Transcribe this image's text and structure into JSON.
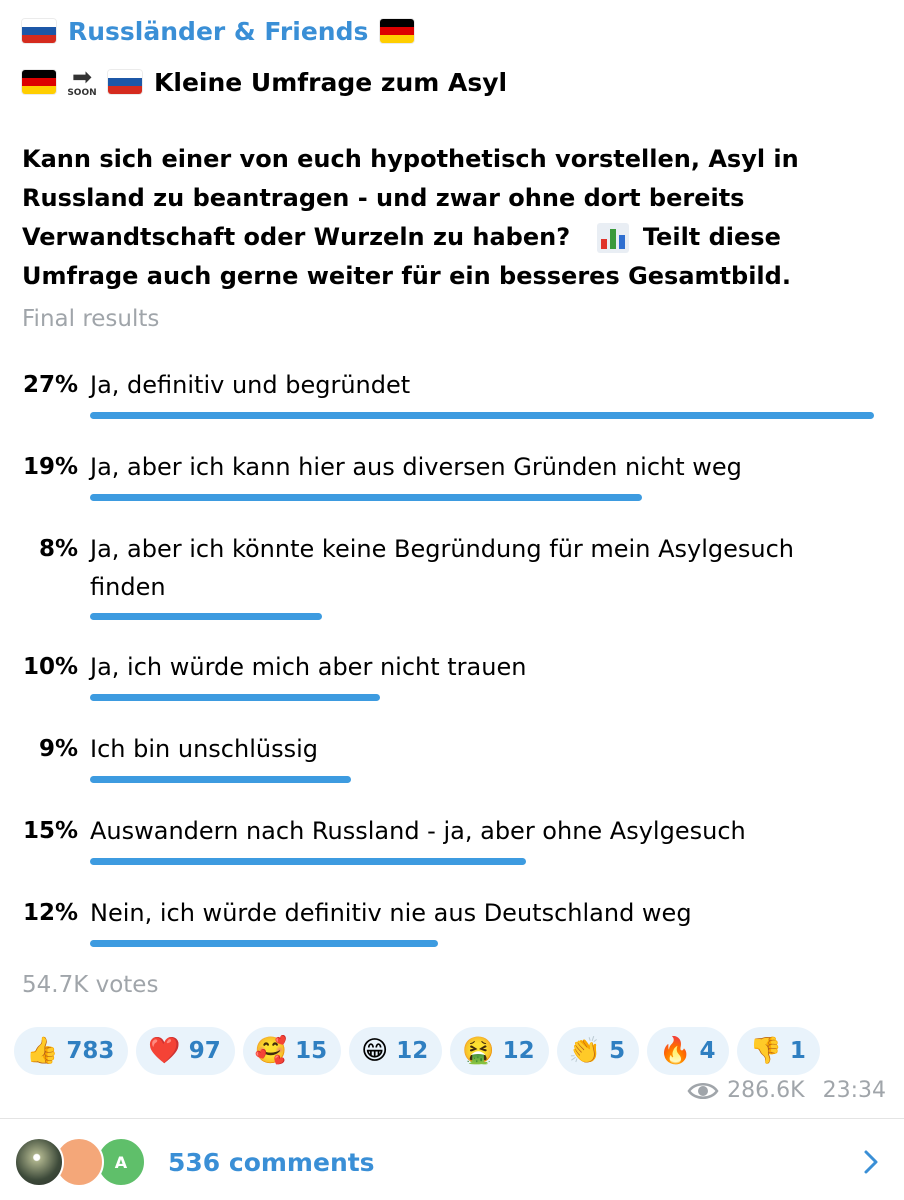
{
  "channel": {
    "name": "Russländer & Friends"
  },
  "post": {
    "headline": "Kleine Umfrage zum Asyl",
    "soon_label": "SOON",
    "question_part1": "Kann sich einer von euch hypothetisch vorstellen, Asyl in Russland zu beantragen - und zwar ohne dort bereits Verwandtschaft oder Wurzeln zu haben?",
    "question_part2": "Teilt diese Umfrage auch gerne weiter für ein besseres Gesamtbild."
  },
  "poll": {
    "status": "Final results",
    "options": [
      {
        "percent": "27%",
        "text": "Ja, definitiv und begründet",
        "value": 27
      },
      {
        "percent": "19%",
        "text": "Ja, aber ich kann hier aus diversen Gründen nicht weg",
        "value": 19
      },
      {
        "percent": "8%",
        "text": "Ja, aber ich könnte keine Begründung für mein Asylgesuch finden",
        "value": 8
      },
      {
        "percent": "10%",
        "text": "Ja, ich würde mich aber nicht trauen",
        "value": 10
      },
      {
        "percent": "9%",
        "text": "Ich bin unschlüssig",
        "value": 9
      },
      {
        "percent": "15%",
        "text": "Auswandern nach Russland - ja, aber ohne Asylgesuch",
        "value": 15
      },
      {
        "percent": "12%",
        "text": "Nein, ich würde definitiv nie aus Deutschland weg",
        "value": 12
      }
    ],
    "votes": "54.7K votes"
  },
  "reactions": [
    {
      "emoji": "👍",
      "count": "783",
      "icon": "thumbs-up-icon"
    },
    {
      "emoji": "❤️",
      "count": "97",
      "icon": "heart-icon"
    },
    {
      "emoji": "🥰",
      "count": "15",
      "icon": "smiling-face-hearts-icon"
    },
    {
      "emoji": "😁",
      "count": "12",
      "icon": "grinning-face-icon"
    },
    {
      "emoji": "🤮",
      "count": "12",
      "icon": "vomiting-face-icon"
    },
    {
      "emoji": "👏",
      "count": "5",
      "icon": "clapping-hands-icon"
    },
    {
      "emoji": "🔥",
      "count": "4",
      "icon": "fire-icon"
    },
    {
      "emoji": "👎",
      "count": "1",
      "icon": "thumbs-down-icon"
    }
  ],
  "meta": {
    "views": "286.6K",
    "time": "23:34"
  },
  "comments": {
    "label": "536 comments",
    "avatar3_letter": "A"
  },
  "colors": {
    "accent": "#3a8fd6",
    "bar": "#3d9be0",
    "muted": "#a0a5aa"
  }
}
